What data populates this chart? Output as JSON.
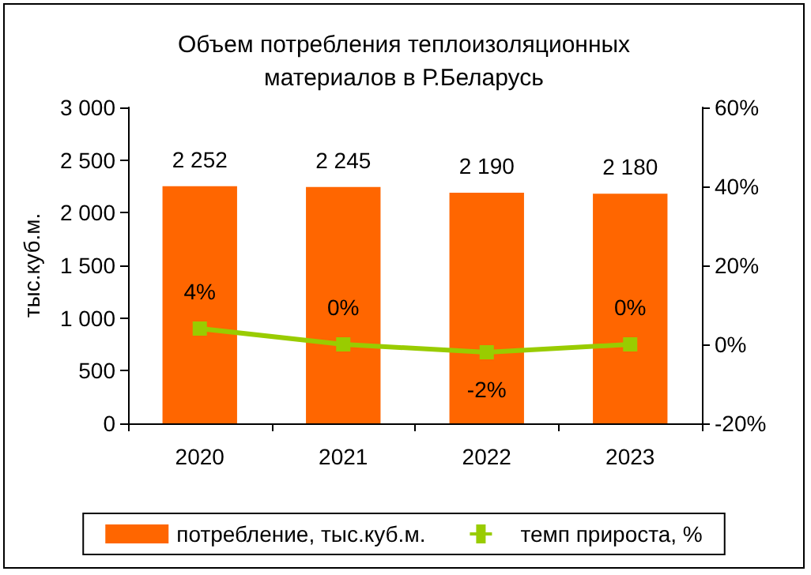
{
  "chart_data": {
    "type": "bar",
    "title": "Объем потребления теплоизоляционных\nматериалов в Р.Беларусь",
    "ylabel": "тыс.куб.м.",
    "categories": [
      "2020",
      "2021",
      "2022",
      "2023"
    ],
    "series": [
      {
        "name": "потребление, тыс.куб.м.",
        "color": "#ff6600",
        "values": [
          2252,
          2245,
          2190,
          2180
        ],
        "value_labels": [
          "2 252",
          "2 245",
          "2 190",
          "2 180"
        ]
      },
      {
        "name": "темп прироста, %",
        "type": "line",
        "axis": "y2",
        "color": "#99cc00",
        "marker": "square",
        "values": [
          4,
          0,
          -2,
          0
        ],
        "value_labels": [
          "4%",
          "0%",
          "-2%",
          "0%"
        ]
      }
    ],
    "ylim": [
      0,
      3000
    ],
    "yticks": [
      0,
      {
        "value": 500,
        "label": "500"
      },
      {
        "value": 1000,
        "label": "1 000"
      },
      {
        "value": 1500,
        "label": "1 500"
      },
      {
        "value": 2000,
        "label": "2 000"
      },
      {
        "value": 2500,
        "label": "2 500"
      },
      {
        "value": 3000,
        "label": "3 000"
      }
    ],
    "y2lim": [
      -20,
      60
    ],
    "y2ticks": [
      {
        "value": -20,
        "label": "-20%"
      },
      {
        "value": 0,
        "label": "0%"
      },
      {
        "value": 20,
        "label": "20%"
      },
      {
        "value": 40,
        "label": "40%"
      },
      {
        "value": 60,
        "label": "60%"
      }
    ],
    "legend": "bottom",
    "grid": false
  }
}
